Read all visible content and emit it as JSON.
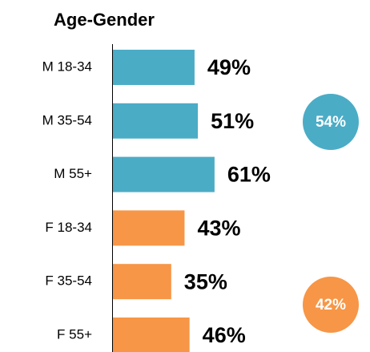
{
  "chart_data": {
    "type": "hbar",
    "title": "Age-Gender",
    "categories": [
      "M 18-34",
      "M 35-54",
      "M 55+",
      "F 18-34",
      "F 35-54",
      "F 55+"
    ],
    "values": [
      49,
      51,
      61,
      43,
      35,
      46
    ],
    "value_labels": [
      "49%",
      "51%",
      "61%",
      "43%",
      "35%",
      "46%"
    ],
    "colors": [
      "#4bacc6",
      "#4bacc6",
      "#4bacc6",
      "#f79646",
      "#f79646",
      "#f79646"
    ],
    "annotations": [
      {
        "value": 54,
        "label": "54%",
        "color": "#4bacc6"
      },
      {
        "value": 42,
        "label": "42%",
        "color": "#f79646"
      }
    ]
  }
}
